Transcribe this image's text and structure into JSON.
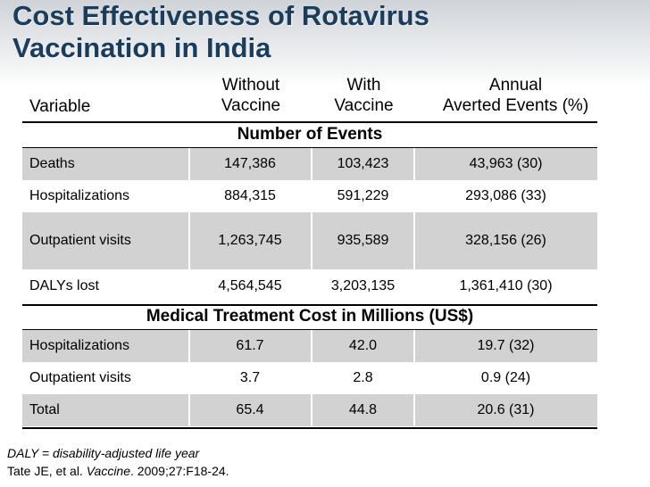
{
  "slide": {
    "title_line1": "Cost Effectiveness of Rotavirus",
    "title_line2": "Vaccination in India"
  },
  "table": {
    "headers": {
      "variable": "Variable",
      "without_line1": "Without",
      "without_line2": "Vaccine",
      "with_line1": "With",
      "with_line2": "Vaccine",
      "averted_line1": "Annual",
      "averted_line2": "Averted Events (%)"
    },
    "sections": [
      {
        "title": "Number of Events",
        "rows": [
          {
            "label": "Deaths",
            "without": "147,386",
            "with": "103,423",
            "averted": "43,963 (30)"
          },
          {
            "label": "Hospitalizations",
            "without": "884,315",
            "with": "591,229",
            "averted": "293,086 (33)"
          },
          {
            "label": "Outpatient visits",
            "without": "1,263,745",
            "with": "935,589",
            "averted": "328,156 (26)"
          },
          {
            "label": "DALYs lost",
            "without": "4,564,545",
            "with": "3,203,135",
            "averted": "1,361,410 (30)"
          }
        ]
      },
      {
        "title": "Medical Treatment Cost in Millions (US$)",
        "rows": [
          {
            "label": "Hospitalizations",
            "without": "61.7",
            "with": "42.0",
            "averted": "19.7 (32)"
          },
          {
            "label": "Outpatient visits",
            "without": "3.7",
            "with": "2.8",
            "averted": "0.9 (24)"
          },
          {
            "label": "Total",
            "without": "65.4",
            "with": "44.8",
            "averted": "20.6 (31)"
          }
        ]
      }
    ]
  },
  "footnotes": {
    "daly_abbr": "DALY = ",
    "daly_def": "disability-adjusted life year",
    "citation_authors": "Tate JE, et al. ",
    "citation_journal": "Vaccine",
    "citation_rest": ". 2009;27:F18-24."
  },
  "colors": {
    "title": "#1a3d5c",
    "row_shade": "#d2d2d2"
  }
}
